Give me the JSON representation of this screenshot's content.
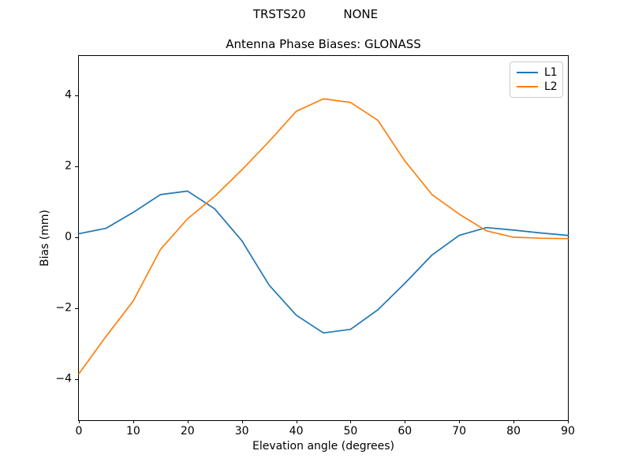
{
  "figure": {
    "background": "#ffffff",
    "axes_edge_color": "#000000",
    "legend_border_color": "#cccccc"
  },
  "chart_data": {
    "type": "line",
    "suptitle": "TRSTS20          NONE",
    "title": "Antenna Phase Biases: GLONASS",
    "xlabel": "Elevation angle (degrees)",
    "ylabel": "Bias (mm)",
    "xlim": [
      0,
      90
    ],
    "ylim": [
      -5.16,
      5.11
    ],
    "xticks": [
      0,
      10,
      20,
      30,
      40,
      50,
      60,
      70,
      80,
      90
    ],
    "yticks": [
      -4,
      -2,
      0,
      2,
      4
    ],
    "ytick_labels": [
      "−4",
      "−2",
      "0",
      "2",
      "4"
    ],
    "grid": false,
    "legend_position": "upper right",
    "x": [
      0,
      5,
      10,
      15,
      20,
      25,
      30,
      35,
      40,
      45,
      50,
      55,
      60,
      65,
      70,
      75,
      80,
      85,
      90
    ],
    "series": [
      {
        "name": "L1",
        "color": "#1f77b4",
        "values": [
          0.1,
          0.25,
          0.7,
          1.2,
          1.3,
          0.8,
          -0.1,
          -1.35,
          -2.2,
          -2.7,
          -2.6,
          -2.05,
          -1.3,
          -0.5,
          0.05,
          0.27,
          0.2,
          0.12,
          0.05
        ]
      },
      {
        "name": "L2",
        "color": "#ff7f0e",
        "values": [
          -3.85,
          -2.8,
          -1.8,
          -0.35,
          0.52,
          1.15,
          1.9,
          2.7,
          3.55,
          3.9,
          3.8,
          3.3,
          2.15,
          1.2,
          0.65,
          0.18,
          0.0,
          -0.03,
          -0.04
        ]
      }
    ]
  }
}
